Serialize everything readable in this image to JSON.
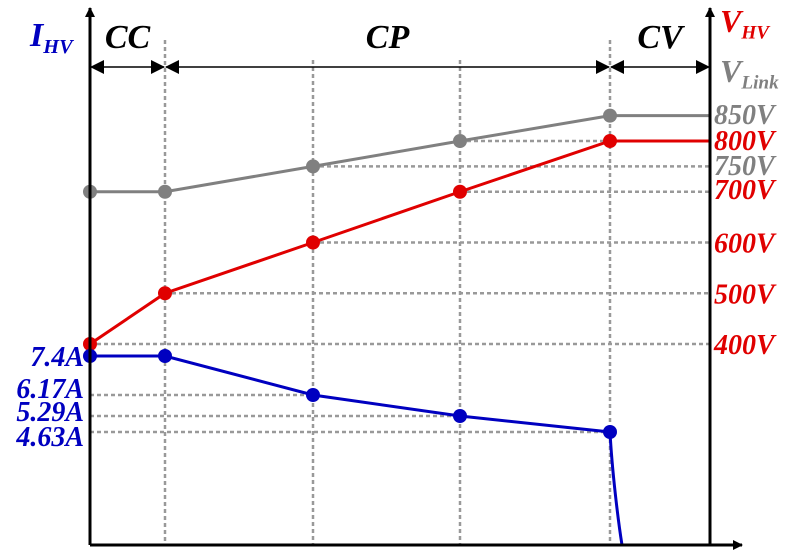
{
  "chart_data": {
    "type": "line",
    "regions": [
      {
        "label": "CC",
        "from": 0,
        "to": 1
      },
      {
        "label": "CP",
        "from": 1,
        "to": 4
      },
      {
        "label": "CV",
        "from": 4,
        "to": 5
      }
    ],
    "left_axis": {
      "label_main": "I",
      "label_sub": "HV",
      "color": "#0000c0"
    },
    "right_axis": [
      {
        "label_main": "V",
        "label_sub": "HV",
        "color": "#e00000"
      },
      {
        "label_main": "V",
        "label_sub": "Link",
        "color": "#808080"
      }
    ],
    "left_ticks": [
      {
        "value": 7.4,
        "label": "7.4A"
      },
      {
        "value": 6.17,
        "label": "6.17A"
      },
      {
        "value": 5.29,
        "label": "5.29A"
      },
      {
        "value": 4.63,
        "label": "4.63A"
      }
    ],
    "right_ticks": [
      {
        "value": 850,
        "label": "850V",
        "color": "#808080"
      },
      {
        "value": 800,
        "label": "800V",
        "color": "#e00000"
      },
      {
        "value": 750,
        "label": "750V",
        "color": "#808080"
      },
      {
        "value": 700,
        "label": "700V",
        "color": "#e00000"
      },
      {
        "value": 600,
        "label": "600V",
        "color": "#e00000"
      },
      {
        "value": 500,
        "label": "500V",
        "color": "#e00000"
      },
      {
        "value": 400,
        "label": "400V",
        "color": "#e00000"
      }
    ],
    "series": [
      {
        "key": "v_link",
        "color": "#808080",
        "axis": "right",
        "values": [
          700,
          700,
          750,
          800,
          850,
          850
        ]
      },
      {
        "key": "v_hv",
        "color": "#e00000",
        "axis": "right",
        "values": [
          400,
          500,
          600,
          700,
          800,
          800
        ]
      },
      {
        "key": "i_hv",
        "color": "#0000c0",
        "axis": "left",
        "values": [
          7.4,
          7.4,
          6.17,
          5.29,
          4.63,
          0
        ]
      }
    ]
  }
}
